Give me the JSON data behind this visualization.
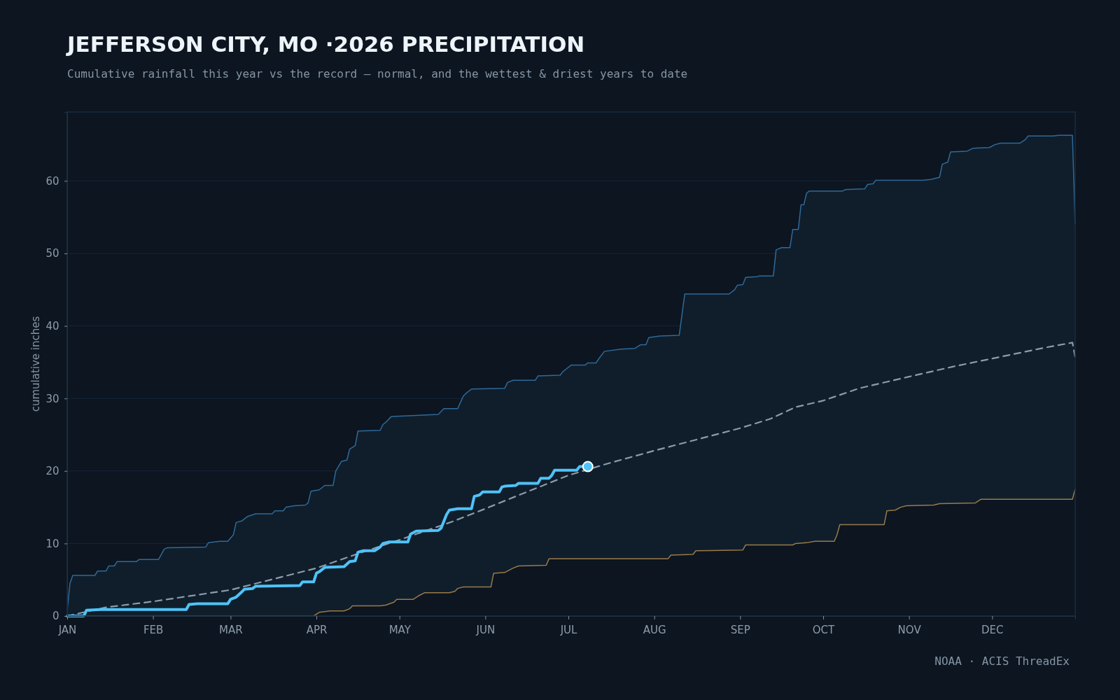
{
  "chart_data": {
    "type": "line",
    "title": "JEFFERSON CITY, MO ·2026 PRECIPITATION",
    "subtitle": "Cumulative rainfall this year vs the record — normal, and the wettest & driest years to date",
    "ylabel": "cumulative inches",
    "annotations": [
      "NOAA · ACIS ThreadEx"
    ],
    "xlim": [
      "--01-01",
      "--12-31"
    ],
    "ylim": [
      0,
      69.5
    ],
    "xticks": [
      {
        "value": "--01-01",
        "label": "JAN"
      },
      {
        "value": "--02-01",
        "label": "FEB"
      },
      {
        "value": "--03-01",
        "label": "MAR"
      },
      {
        "value": "--04-01",
        "label": "APR"
      },
      {
        "value": "--05-01",
        "label": "MAY"
      },
      {
        "value": "--06-01",
        "label": "JUN"
      },
      {
        "value": "--07-01",
        "label": "JUL"
      },
      {
        "value": "--08-01",
        "label": "AUG"
      },
      {
        "value": "--09-01",
        "label": "SEP"
      },
      {
        "value": "--10-01",
        "label": "OCT"
      },
      {
        "value": "--11-01",
        "label": "NOV"
      },
      {
        "value": "--12-01",
        "label": "DEC"
      }
    ],
    "yticks": [
      0,
      10,
      20,
      30,
      40,
      50,
      60
    ],
    "grid": "y",
    "series": [
      {
        "type": "area",
        "color": "#2f6a98",
        "x": [
          "--01-01",
          "--01-02",
          "--01-03",
          "--01-11",
          "--01-12",
          "--01-15",
          "--01-16",
          "--01-18",
          "--01-19",
          "--01-26",
          "--01-27",
          "--02-03",
          "--02-05",
          "--02-06",
          "--02-20",
          "--02-21",
          "--02-23",
          "--02-25",
          "--02-28",
          "--03-02",
          "--03-03",
          "--03-05",
          "--03-07",
          "--03-10",
          "--03-16",
          "--03-17",
          "--03-20",
          "--03-21",
          "--03-24",
          "--03-28",
          "--03-29",
          "--03-30",
          "--04-02",
          "--04-04",
          "--04-07",
          "--04-08",
          "--04-10",
          "--04-12",
          "--04-13",
          "--04-15",
          "--04-16",
          "--04-24",
          "--04-25",
          "--04-26",
          "--04-28",
          "--05-04",
          "--05-15",
          "--05-17",
          "--05-22",
          "--05-24",
          "--05-25",
          "--05-27",
          "--06-08",
          "--06-09",
          "--06-11",
          "--06-19",
          "--06-20",
          "--06-28",
          "--06-29",
          "--06-30",
          "--07-02",
          "--07-07",
          "--07-08",
          "--07-11",
          "--07-12",
          "--07-14",
          "--07-20",
          "--07-25",
          "--07-27",
          "--07-29",
          "--07-30",
          "--08-03",
          "--08-10",
          "--08-12",
          "--08-28",
          "--08-30",
          "--08-31",
          "--09-02",
          "--09-03",
          "--09-07",
          "--09-08",
          "--09-13",
          "--09-14",
          "--09-16",
          "--09-19",
          "--09-20",
          "--09-22",
          "--09-23",
          "--09-24",
          "--09-25",
          "--09-26",
          "--10-08",
          "--10-09",
          "--10-16",
          "--10-17",
          "--10-19",
          "--10-20",
          "--11-06",
          "--11-09",
          "--11-12",
          "--11-13",
          "--11-15",
          "--11-16",
          "--11-22",
          "--11-24",
          "--11-30",
          "--12-02",
          "--12-04",
          "--12-11",
          "--12-13",
          "--12-14",
          "--12-23",
          "--12-25",
          "--12-30",
          "--12-31"
        ],
        "values": [
          0.8,
          4.5,
          5.6,
          5.6,
          6.2,
          6.2,
          6.9,
          6.9,
          7.5,
          7.5,
          7.8,
          7.8,
          9.2,
          9.4,
          9.5,
          10.1,
          10.2,
          10.3,
          10.3,
          11.2,
          12.9,
          13.1,
          13.7,
          14.1,
          14.1,
          14.5,
          14.5,
          15.0,
          15.2,
          15.3,
          15.6,
          17.2,
          17.4,
          18.0,
          18.0,
          20.0,
          21.3,
          21.5,
          23.0,
          23.5,
          25.5,
          25.6,
          26.4,
          26.7,
          27.5,
          27.6,
          27.8,
          28.6,
          28.6,
          30.3,
          30.7,
          31.3,
          31.4,
          32.2,
          32.5,
          32.5,
          33.1,
          33.2,
          33.7,
          34.0,
          34.6,
          34.6,
          34.9,
          34.9,
          35.5,
          36.5,
          36.8,
          36.9,
          37.4,
          37.4,
          38.4,
          38.6,
          38.7,
          44.4,
          44.4,
          45.0,
          45.6,
          45.7,
          46.7,
          46.8,
          46.9,
          46.9,
          50.5,
          50.8,
          50.8,
          53.3,
          53.3,
          56.7,
          56.7,
          58.3,
          58.6,
          58.6,
          58.8,
          58.9,
          59.5,
          59.6,
          60.1,
          60.1,
          60.2,
          60.5,
          62.3,
          62.6,
          64.0,
          64.1,
          64.5,
          64.6,
          65.0,
          65.2,
          65.2,
          65.7,
          66.2,
          66.2,
          66.3,
          66.3,
          54.0
        ]
      },
      {
        "type": "area",
        "color": "#9a7a48",
        "x": [
          "--01-01",
          "--03-31",
          "--04-02",
          "--04-06",
          "--04-11",
          "--04-13",
          "--04-14",
          "--04-24",
          "--04-26",
          "--04-29",
          "--04-30",
          "--05-06",
          "--05-08",
          "--05-10",
          "--05-19",
          "--05-21",
          "--05-22",
          "--05-24",
          "--06-03",
          "--06-04",
          "--06-08",
          "--06-11",
          "--06-13",
          "--06-23",
          "--06-24",
          "--08-06",
          "--08-07",
          "--08-15",
          "--08-16",
          "--09-02",
          "--09-03",
          "--09-20",
          "--09-21",
          "--09-25",
          "--09-28",
          "--10-05",
          "--10-06",
          "--10-07",
          "--10-23",
          "--10-24",
          "--10-27",
          "--10-29",
          "--10-31",
          "--11-10",
          "--11-12",
          "--11-25",
          "--11-27",
          "--12-30",
          "--12-31"
        ],
        "values": [
          0,
          0,
          0.5,
          0.7,
          0.7,
          1.0,
          1.4,
          1.4,
          1.5,
          1.9,
          2.3,
          2.3,
          2.8,
          3.2,
          3.2,
          3.4,
          3.8,
          4.0,
          4.0,
          5.9,
          6.0,
          6.6,
          6.9,
          7.0,
          7.9,
          7.9,
          8.4,
          8.5,
          9.0,
          9.1,
          9.8,
          9.8,
          10.0,
          10.1,
          10.3,
          10.3,
          11.2,
          12.6,
          12.6,
          14.5,
          14.6,
          15.0,
          15.2,
          15.3,
          15.5,
          15.6,
          16.1,
          16.1,
          17.5
        ]
      },
      {
        "color": "#8b9bab",
        "line_style": "dashed",
        "x": [
          "--01-01",
          "--01-15",
          "--02-01",
          "--03-01",
          "--04-01",
          "--04-16",
          "--05-01",
          "--05-20",
          "--06-01",
          "--06-12",
          "--07-01",
          "--07-15",
          "--08-01",
          "--08-13",
          "--09-01",
          "--09-12",
          "--09-21",
          "--10-01",
          "--10-14",
          "--11-01",
          "--11-17",
          "--12-01",
          "--12-20",
          "--12-30",
          "--12-31"
        ],
        "values": [
          0,
          1.2,
          2.0,
          3.6,
          6.6,
          8.6,
          10.5,
          13.0,
          14.8,
          16.5,
          19.4,
          21.0,
          22.8,
          24.0,
          25.9,
          27.2,
          28.8,
          29.7,
          31.4,
          33.0,
          34.4,
          35.5,
          37.0,
          37.7,
          35.7
        ]
      },
      {
        "color": "#4fc3f7",
        "x": [
          "--01-01",
          "--01-07",
          "--01-08",
          "--01-13",
          "--02-13",
          "--02-14",
          "--02-17",
          "--02-28",
          "--03-01",
          "--03-03",
          "--03-05",
          "--03-06",
          "--03-09",
          "--03-10",
          "--03-26",
          "--03-27",
          "--03-31",
          "--04-01",
          "--04-02",
          "--04-04",
          "--04-11",
          "--04-13",
          "--04-15",
          "--04-16",
          "--04-18",
          "--04-22",
          "--04-24",
          "--04-25",
          "--04-27",
          "--05-04",
          "--05-05",
          "--05-07",
          "--05-15",
          "--05-16",
          "--05-18",
          "--05-19",
          "--05-22",
          "--05-27",
          "--05-28",
          "--05-30",
          "--05-31",
          "--06-06",
          "--06-07",
          "--06-08",
          "--06-12",
          "--06-13",
          "--06-20",
          "--06-21",
          "--06-24",
          "--06-25",
          "--06-26",
          "--07-04",
          "--07-05",
          "--07-08"
        ],
        "values": [
          0,
          0,
          0.8,
          0.9,
          0.9,
          1.6,
          1.7,
          1.7,
          2.3,
          2.6,
          3.3,
          3.7,
          3.8,
          4.1,
          4.2,
          4.7,
          4.7,
          5.9,
          6.1,
          6.7,
          6.8,
          7.5,
          7.6,
          8.8,
          9.0,
          9.0,
          9.5,
          10.0,
          10.2,
          10.2,
          11.3,
          11.7,
          11.8,
          12.1,
          14.0,
          14.6,
          14.8,
          14.8,
          16.5,
          16.7,
          17.1,
          17.1,
          17.8,
          17.9,
          18.0,
          18.3,
          18.3,
          19.0,
          19.0,
          19.4,
          20.1,
          20.1,
          20.6,
          20.6
        ]
      },
      {
        "type": "scatter",
        "color": "#4fc3f7",
        "marker": "circle",
        "x": [
          "--07-08"
        ],
        "values": [
          20.6
        ]
      }
    ]
  }
}
